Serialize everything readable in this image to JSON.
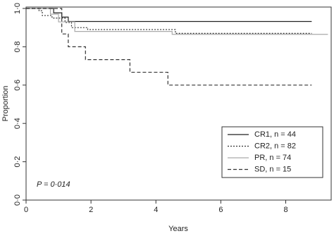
{
  "chart_data": {
    "type": "step",
    "x_label": "Years",
    "y_label": "Proportion",
    "annotation": "P = 0·014",
    "xlim": [
      0,
      9.4
    ],
    "xticks": [
      0,
      2,
      4,
      6,
      8
    ],
    "ylim": [
      0,
      1
    ],
    "yticks": [
      {
        "value": 0,
        "label": "0·0"
      },
      {
        "value": 0.2,
        "label": "0·2"
      },
      {
        "value": 0.4,
        "label": "0·4"
      },
      {
        "value": 0.6,
        "label": "0·6"
      },
      {
        "value": 0.8,
        "label": "0·8"
      },
      {
        "value": 1,
        "label": "1·0"
      }
    ],
    "legend": "lower right",
    "series": [
      {
        "name": "CR1, n = 44",
        "color": "#222222",
        "dash": "solid",
        "x": [
          0,
          0.85,
          1.1,
          1.3,
          8.8
        ],
        "values": [
          1.0,
          0.977,
          0.955,
          0.932,
          0.932
        ]
      },
      {
        "name": "CR2, n = 82",
        "color": "#333333",
        "dash": "dotted",
        "x": [
          0,
          0.4,
          0.5,
          0.8,
          1.2,
          1.4,
          1.9,
          4.6,
          8.8
        ],
        "values": [
          1.0,
          0.988,
          0.963,
          0.95,
          0.927,
          0.9,
          0.89,
          0.87,
          0.87
        ]
      },
      {
        "name": "PR, n = 74",
        "color": "#aaaaaa",
        "dash": "solid",
        "x": [
          0,
          0.75,
          1.0,
          1.5,
          4.5,
          9.3
        ],
        "values": [
          1.0,
          0.97,
          0.93,
          0.88,
          0.865,
          0.865
        ]
      },
      {
        "name": "SD, n = 15",
        "color": "#333333",
        "dash": "dashed",
        "x": [
          0,
          1.1,
          1.3,
          1.83,
          3.2,
          4.37,
          8.8
        ],
        "values": [
          1.0,
          0.867,
          0.8,
          0.733,
          0.667,
          0.6,
          0.6
        ]
      }
    ]
  }
}
